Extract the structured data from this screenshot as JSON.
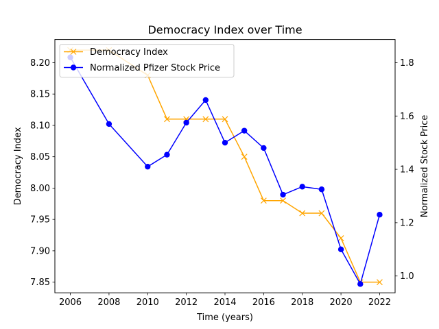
{
  "chart_data": {
    "type": "line",
    "title": "Democracy Index over Time",
    "xlabel": "Time (years)",
    "ylabel_left": "Democracy Index",
    "ylabel_right": "Normalized Stock Price",
    "xlim": [
      2005.2,
      2022.8
    ],
    "ylim_left": [
      7.833,
      8.237
    ],
    "ylim_right": [
      0.937,
      1.887
    ],
    "x_ticks": [
      2006,
      2008,
      2010,
      2012,
      2014,
      2016,
      2018,
      2020,
      2022
    ],
    "x_tick_labels": [
      "2006",
      "2008",
      "2010",
      "2012",
      "2014",
      "2016",
      "2018",
      "2020",
      "2022"
    ],
    "y_left_ticks": [
      7.85,
      7.9,
      7.95,
      8.0,
      8.05,
      8.1,
      8.15,
      8.2
    ],
    "y_left_tick_labels": [
      "7.85",
      "7.90",
      "7.95",
      "8.00",
      "8.05",
      "8.10",
      "8.15",
      "8.20"
    ],
    "y_right_ticks": [
      1.0,
      1.2,
      1.4,
      1.6,
      1.8
    ],
    "y_right_tick_labels": [
      "1.0",
      "1.2",
      "1.4",
      "1.6",
      "1.8"
    ],
    "grid": false,
    "legend_position": "top-left",
    "series": [
      {
        "name": "Democracy Index",
        "axis": "left",
        "color": "#ffa500",
        "marker": "x",
        "x": [
          2006,
          2008,
          2010,
          2011,
          2012,
          2013,
          2014,
          2015,
          2016,
          2017,
          2018,
          2019,
          2020,
          2021,
          2022
        ],
        "y": [
          8.22,
          8.22,
          8.18,
          8.11,
          8.11,
          8.11,
          8.11,
          8.05,
          7.98,
          7.98,
          7.96,
          7.96,
          7.92,
          7.85,
          7.85
        ]
      },
      {
        "name": "Normalized Pfizer Stock Price",
        "axis": "right",
        "color": "#0000ff",
        "marker": "o",
        "x": [
          2006,
          2008,
          2010,
          2011,
          2012,
          2013,
          2014,
          2015,
          2016,
          2017,
          2018,
          2019,
          2020,
          2021,
          2022
        ],
        "y": [
          1.82,
          1.57,
          1.41,
          1.455,
          1.575,
          1.66,
          1.5,
          1.545,
          1.48,
          1.305,
          1.335,
          1.325,
          1.1,
          0.97,
          1.23
        ]
      }
    ]
  }
}
